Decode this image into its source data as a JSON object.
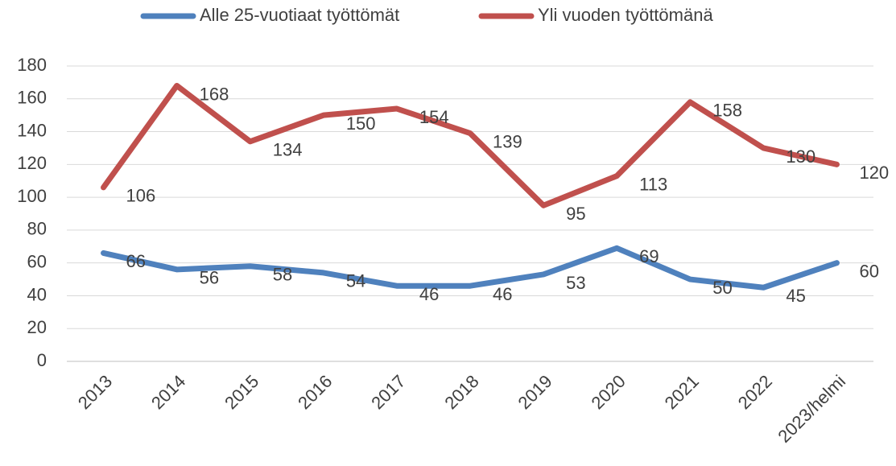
{
  "chart_data": {
    "type": "line",
    "categories": [
      "2013",
      "2014",
      "2015",
      "2016",
      "2017",
      "2018",
      "2019",
      "2020",
      "2021",
      "2022",
      "2023/helmi"
    ],
    "series": [
      {
        "name": "Alle 25-vuotiaat työttömät",
        "color": "#4f81bd",
        "values": [
          66,
          56,
          58,
          54,
          46,
          46,
          53,
          69,
          50,
          45,
          60
        ]
      },
      {
        "name": "Yli vuoden työttömänä",
        "color": "#c0504d",
        "values": [
          106,
          168,
          134,
          150,
          154,
          139,
          95,
          113,
          158,
          130,
          120
        ]
      }
    ],
    "ylim": [
      0,
      180
    ],
    "yticks": [
      0,
      20,
      40,
      60,
      80,
      100,
      120,
      140,
      160,
      180
    ],
    "grid": true,
    "legend": "top"
  }
}
